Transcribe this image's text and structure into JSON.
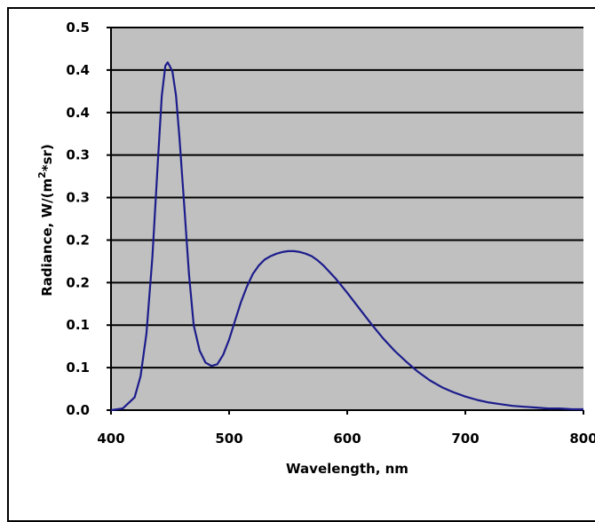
{
  "chart_data": {
    "type": "line",
    "title": "",
    "xlabel": "Wavelength, nm",
    "ylabel": "Radiance, W/(m",
    "ylabel_sup": "2",
    "ylabel_tail": "*sr)",
    "xlim": [
      400,
      800
    ],
    "ylim": [
      0,
      0.45
    ],
    "x_ticks": [
      400,
      500,
      600,
      700,
      800
    ],
    "x_tick_labels": [
      "400",
      "500",
      "600",
      "700",
      "800"
    ],
    "y_ticks": [
      0,
      0.05,
      0.1,
      0.15,
      0.2,
      0.25,
      0.3,
      0.35,
      0.4,
      0.45
    ],
    "y_tick_labels": [
      "0.0",
      "0.1",
      "0.1",
      "0.2",
      "0.2",
      "0.3",
      "0.3",
      "0.4",
      "0.4",
      "0.5"
    ],
    "grid": true,
    "legend": "none",
    "colors": {
      "plot_bg": "#c0c0c0",
      "line": "#1c1c8c",
      "grid": "#000000"
    },
    "series": [
      {
        "x": [
          400,
          410,
          420,
          425,
          430,
          435,
          440,
          443,
          446,
          448,
          450,
          452,
          455,
          458,
          462,
          466,
          470,
          475,
          480,
          485,
          490,
          495,
          500,
          505,
          510,
          515,
          520,
          525,
          530,
          535,
          540,
          545,
          550,
          555,
          560,
          565,
          570,
          575,
          580,
          590,
          600,
          610,
          620,
          630,
          640,
          650,
          660,
          670,
          680,
          690,
          700,
          710,
          720,
          730,
          740,
          750,
          760,
          770,
          780,
          790,
          800
        ],
        "y": [
          0.0,
          0.002,
          0.015,
          0.04,
          0.09,
          0.18,
          0.3,
          0.37,
          0.405,
          0.409,
          0.404,
          0.398,
          0.37,
          0.32,
          0.24,
          0.16,
          0.1,
          0.07,
          0.056,
          0.052,
          0.054,
          0.065,
          0.083,
          0.105,
          0.127,
          0.145,
          0.16,
          0.17,
          0.177,
          0.181,
          0.184,
          0.186,
          0.187,
          0.187,
          0.186,
          0.184,
          0.181,
          0.176,
          0.17,
          0.155,
          0.138,
          0.12,
          0.102,
          0.085,
          0.07,
          0.057,
          0.045,
          0.035,
          0.027,
          0.021,
          0.016,
          0.012,
          0.009,
          0.007,
          0.005,
          0.004,
          0.003,
          0.002,
          0.002,
          0.001,
          0.001
        ]
      }
    ]
  }
}
